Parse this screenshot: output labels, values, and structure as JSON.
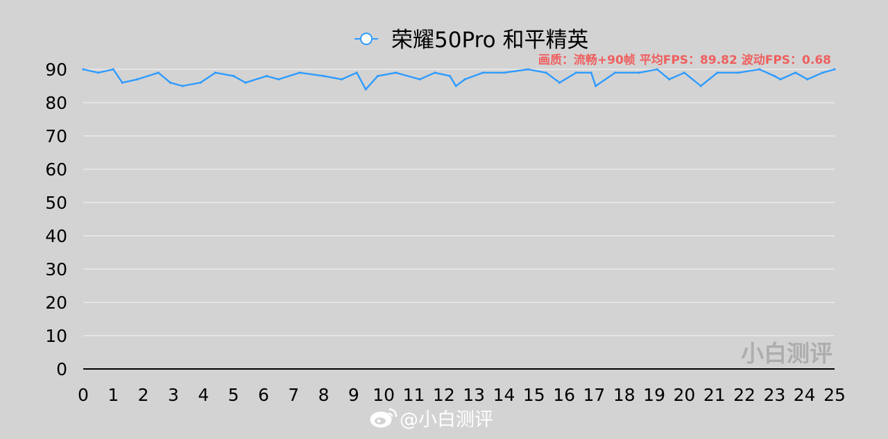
{
  "chart_data": {
    "type": "line",
    "title": "",
    "xlabel": "",
    "ylabel": "",
    "xlim": [
      0,
      25
    ],
    "ylim": [
      0,
      90
    ],
    "x_ticks": [
      0,
      1,
      2,
      3,
      4,
      5,
      6,
      7,
      8,
      9,
      10,
      11,
      12,
      13,
      14,
      15,
      16,
      17,
      18,
      19,
      20,
      21,
      22,
      23,
      24,
      25
    ],
    "y_ticks": [
      0,
      10,
      20,
      30,
      40,
      50,
      60,
      70,
      80,
      90
    ],
    "grid": "horizontal",
    "legend_position": "top-center",
    "annotation": "画质：流畅+90帧 平均FPS：89.82 波动FPS：0.68",
    "series": [
      {
        "name": "荣耀50Pro 和平精英",
        "color": "#2e9bff",
        "x": [
          0,
          0.5,
          1,
          1.3,
          1.8,
          2.5,
          2.9,
          3.3,
          3.9,
          4.4,
          5.0,
          5.4,
          6.1,
          6.5,
          7.2,
          8.0,
          8.6,
          9.1,
          9.4,
          9.8,
          10.4,
          11.2,
          11.7,
          12.2,
          12.4,
          12.7,
          13.3,
          14.0,
          14.8,
          15.4,
          15.85,
          16.4,
          16.9,
          17.05,
          17.7,
          18.5,
          19.1,
          19.5,
          20.0,
          20.55,
          21.1,
          21.8,
          22.5,
          23.0,
          23.2,
          23.7,
          24.1,
          24.6,
          25
        ],
        "y": [
          90,
          89,
          90,
          86,
          87,
          89,
          86,
          85,
          86,
          89,
          88,
          86,
          88,
          87,
          89,
          88,
          87,
          89,
          84,
          88,
          89,
          87,
          89,
          88,
          85,
          87,
          89,
          89,
          90,
          89,
          86,
          89,
          89,
          85,
          89,
          89,
          90,
          87,
          89,
          85,
          89,
          89,
          90,
          88,
          87,
          89,
          87,
          89,
          90
        ]
      }
    ]
  },
  "watermark": "小白测评",
  "footer": {
    "handle": "@小白测评"
  }
}
